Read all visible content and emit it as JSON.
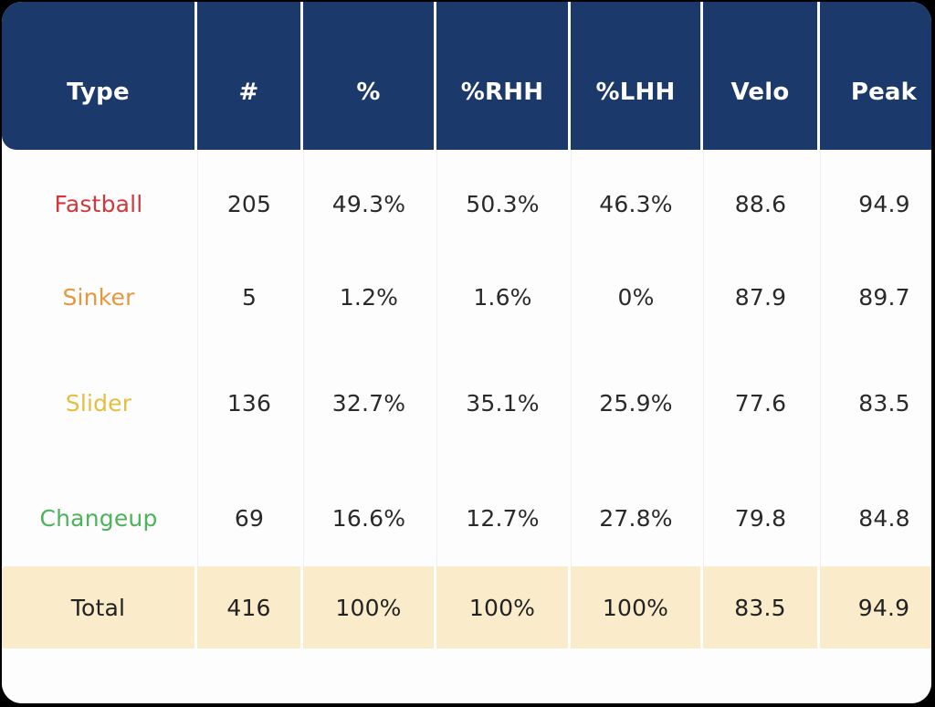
{
  "colors": {
    "header_bg": "#1b3a6b",
    "header_text": "#ffffff",
    "total_bg": "#faeccb",
    "Fastball": "#d0383b",
    "Sinker": "#e6973e",
    "Slider": "#e6bd40",
    "Changeup": "#4cb35a"
  },
  "chart_data": {
    "type": "table",
    "columns": [
      "Type",
      "#",
      "%",
      "%RHH",
      "%LHH",
      "Velo",
      "Peak"
    ],
    "rows": [
      {
        "type": "Fastball",
        "count": "205",
        "pct": "49.3%",
        "rhh": "50.3%",
        "lhh": "46.3%",
        "velo": "88.6",
        "peak": "94.9"
      },
      {
        "type": "Sinker",
        "count": "5",
        "pct": "1.2%",
        "rhh": "1.6%",
        "lhh": "0%",
        "velo": "87.9",
        "peak": "89.7"
      },
      {
        "type": "Slider",
        "count": "136",
        "pct": "32.7%",
        "rhh": "35.1%",
        "lhh": "25.9%",
        "velo": "77.6",
        "peak": "83.5"
      },
      {
        "type": "Changeup",
        "count": "69",
        "pct": "16.6%",
        "rhh": "12.7%",
        "lhh": "27.8%",
        "velo": "79.8",
        "peak": "84.8"
      }
    ],
    "total": {
      "type": "Total",
      "count": "416",
      "pct": "100%",
      "rhh": "100%",
      "lhh": "100%",
      "velo": "83.5",
      "peak": "94.9"
    }
  }
}
